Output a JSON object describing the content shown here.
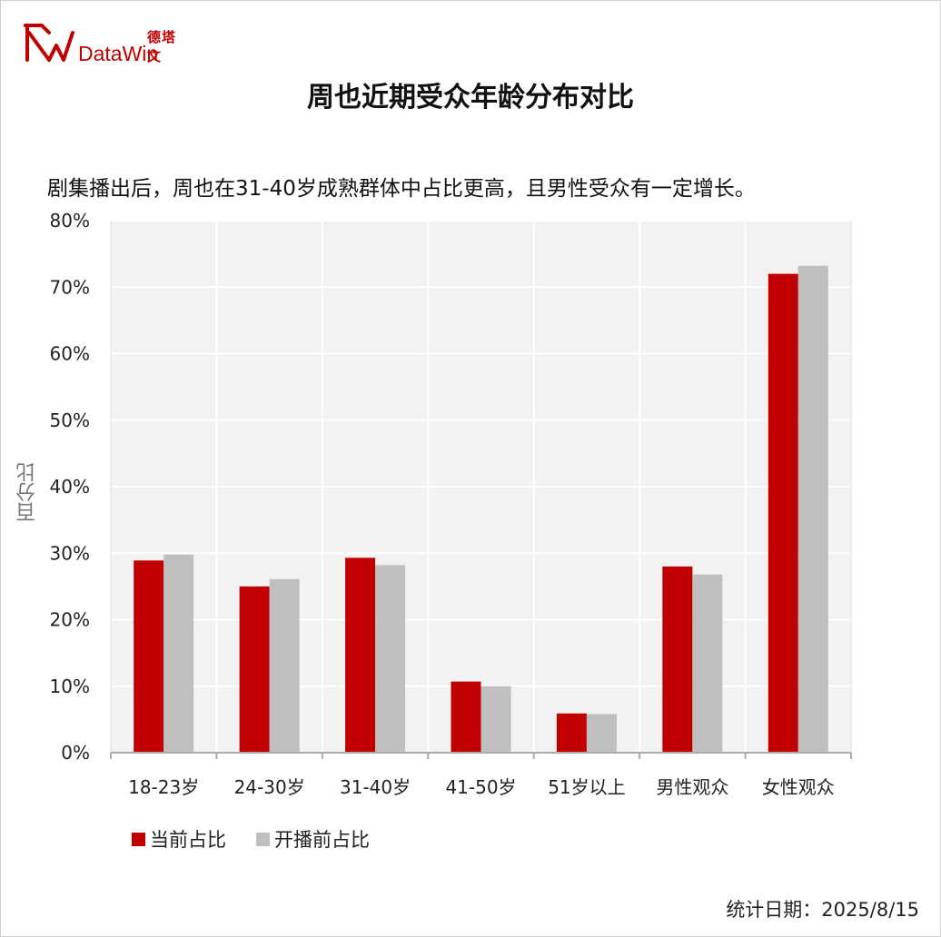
{
  "header": {
    "logo_cn": "德塔文",
    "logo_en": "DataWin",
    "brand_color": "#c00000"
  },
  "chart_data": {
    "type": "bar",
    "title": "周也近期受众年龄分布对比",
    "subtitle": "剧集播出后，周也在31-40岁成熟群体中占比更高，且男性受众有一定增长。",
    "ylabel": "百分比",
    "xlabel": "",
    "ylim": [
      0,
      80
    ],
    "y_ticks": [
      "0%",
      "10%",
      "20%",
      "30%",
      "40%",
      "50%",
      "60%",
      "70%",
      "80%"
    ],
    "grid": true,
    "legend_position": "bottom-left",
    "categories": [
      "18-23岁",
      "24-30岁",
      "31-40岁",
      "41-50岁",
      "51岁以上",
      "男性观众",
      "女性观众"
    ],
    "series": [
      {
        "name": "当前占比",
        "color": "#c00000",
        "values": [
          28.9,
          25.0,
          29.3,
          10.7,
          5.9,
          28.0,
          72.0
        ]
      },
      {
        "name": "开播前占比",
        "color": "#bfbfbf",
        "values": [
          29.8,
          26.1,
          28.2,
          10.0,
          5.8,
          26.8,
          73.2
        ]
      }
    ]
  },
  "footer": {
    "stat_date": "统计日期：2025/8/15"
  }
}
